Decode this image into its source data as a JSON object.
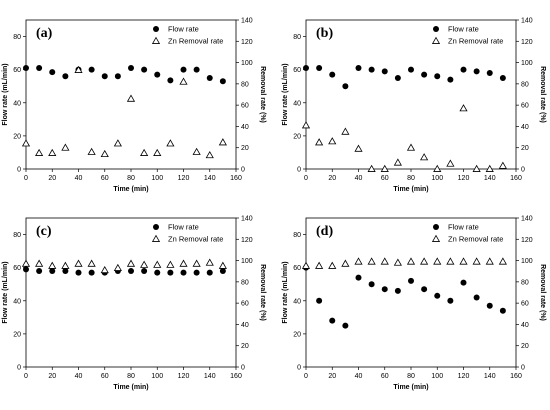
{
  "chart_data": [
    {
      "panel_label": "(a)",
      "type": "scatter",
      "xlabel": "Time (min)",
      "ylabel_left": "Flow rate (mL/min)",
      "ylabel_right": "Removal rate (%)",
      "xlim": [
        0,
        160
      ],
      "xticks": [
        0,
        20,
        40,
        60,
        80,
        100,
        120,
        140,
        160
      ],
      "ylim_left": [
        0,
        90
      ],
      "yticks_left": [
        0,
        20,
        40,
        60,
        80
      ],
      "ylim_right": [
        0,
        140
      ],
      "yticks_right": [
        0,
        20,
        40,
        60,
        80,
        100,
        120,
        140
      ],
      "legend_position": "top-right",
      "series": [
        {
          "name": "Flow rate",
          "marker": "filled-circle",
          "axis": "left",
          "x": [
            0,
            10,
            20,
            30,
            40,
            50,
            60,
            70,
            80,
            90,
            100,
            110,
            120,
            130,
            140,
            150
          ],
          "y": [
            61,
            61,
            58.5,
            56,
            60,
            60,
            56,
            56,
            61,
            60,
            57,
            53.5,
            60,
            60,
            55,
            53
          ]
        },
        {
          "name": "Zn Removal rate",
          "marker": "open-triangle",
          "axis": "right",
          "x": [
            0,
            10,
            20,
            30,
            40,
            50,
            60,
            70,
            80,
            90,
            100,
            110,
            120,
            130,
            140,
            150
          ],
          "y": [
            24,
            15,
            15,
            20,
            93,
            16,
            14,
            24,
            66,
            15,
            15,
            24,
            82,
            16,
            13,
            25
          ]
        }
      ]
    },
    {
      "panel_label": "(b)",
      "type": "scatter",
      "xlabel": "Time (min)",
      "ylabel_left": "Flow rate (mL/min)",
      "ylabel_right": "Removal rate (%)",
      "xlim": [
        0,
        160
      ],
      "xticks": [
        0,
        20,
        40,
        60,
        80,
        100,
        120,
        140,
        160
      ],
      "ylim_left": [
        0,
        90
      ],
      "yticks_left": [
        0,
        20,
        40,
        60,
        80
      ],
      "ylim_right": [
        0,
        140
      ],
      "yticks_right": [
        0,
        20,
        40,
        60,
        80,
        100,
        120,
        140
      ],
      "legend_position": "top-right",
      "series": [
        {
          "name": "Flow rate",
          "marker": "filled-circle",
          "axis": "left",
          "x": [
            0,
            10,
            20,
            30,
            40,
            50,
            60,
            70,
            80,
            90,
            100,
            110,
            120,
            130,
            140,
            150
          ],
          "y": [
            61,
            61,
            57,
            50,
            61,
            60,
            59,
            55,
            60,
            57,
            56,
            54,
            60,
            59,
            58,
            55
          ]
        },
        {
          "name": "Zn Removal rate",
          "marker": "open-triangle",
          "axis": "right",
          "x": [
            0,
            10,
            20,
            30,
            40,
            50,
            60,
            70,
            80,
            90,
            100,
            110,
            120,
            130,
            140,
            150
          ],
          "y": [
            41,
            25,
            26,
            35,
            19,
            0,
            0,
            6,
            20,
            11,
            0,
            5,
            57,
            0,
            0,
            3
          ]
        }
      ]
    },
    {
      "panel_label": "(c)",
      "type": "scatter",
      "xlabel": "Time (min)",
      "ylabel_left": "Flow rate (mL/min)",
      "ylabel_right": "Removal rate (%)",
      "xlim": [
        0,
        160
      ],
      "xticks": [
        0,
        20,
        40,
        60,
        80,
        100,
        120,
        140,
        160
      ],
      "ylim_left": [
        0,
        90
      ],
      "yticks_left": [
        0,
        20,
        40,
        60,
        80
      ],
      "ylim_right": [
        0,
        140
      ],
      "yticks_right": [
        0,
        20,
        40,
        60,
        80,
        100,
        120,
        140
      ],
      "legend_position": "top-right",
      "series": [
        {
          "name": "Flow rate",
          "marker": "filled-circle",
          "axis": "left",
          "x": [
            0,
            10,
            20,
            30,
            40,
            50,
            60,
            70,
            80,
            90,
            100,
            110,
            120,
            130,
            140,
            150
          ],
          "y": [
            59,
            58,
            58,
            58,
            57,
            57,
            57,
            58,
            58,
            58,
            57,
            57,
            57,
            57,
            57,
            58
          ]
        },
        {
          "name": "Zn Removal rate",
          "marker": "open-triangle",
          "axis": "right",
          "x": [
            0,
            10,
            20,
            30,
            40,
            50,
            60,
            70,
            80,
            90,
            100,
            110,
            120,
            130,
            140,
            150
          ],
          "y": [
            97,
            97,
            95,
            95,
            97,
            97,
            91,
            93,
            97,
            96,
            96,
            96,
            97,
            97,
            98,
            95
          ]
        }
      ]
    },
    {
      "panel_label": "(d)",
      "type": "scatter",
      "xlabel": "Time (min)",
      "ylabel_left": "Flow rate (mL/min)",
      "ylabel_right": "Removal rate (%)",
      "xlim": [
        0,
        160
      ],
      "xticks": [
        0,
        20,
        40,
        60,
        80,
        100,
        120,
        140,
        160
      ],
      "ylim_left": [
        0,
        90
      ],
      "yticks_left": [
        0,
        20,
        40,
        60,
        80
      ],
      "ylim_right": [
        0,
        140
      ],
      "yticks_right": [
        0,
        20,
        40,
        60,
        80,
        100,
        120,
        140
      ],
      "legend_position": "top-right",
      "series": [
        {
          "name": "Flow rate",
          "marker": "filled-circle",
          "axis": "left",
          "x": [
            0,
            10,
            20,
            30,
            40,
            50,
            60,
            70,
            80,
            90,
            100,
            110,
            120,
            130,
            140,
            150
          ],
          "y": [
            60,
            40,
            28,
            25,
            54,
            50,
            47,
            46,
            52,
            47,
            43,
            40,
            51,
            42,
            37,
            34
          ]
        },
        {
          "name": "Zn Removal rate",
          "marker": "open-triangle",
          "axis": "right",
          "x": [
            0,
            10,
            20,
            30,
            40,
            50,
            60,
            70,
            80,
            90,
            100,
            110,
            120,
            130,
            140,
            150
          ],
          "y": [
            95,
            95,
            95,
            97,
            99,
            99,
            99,
            98,
            99,
            99,
            99,
            99,
            99,
            99,
            99,
            99
          ]
        }
      ]
    }
  ]
}
